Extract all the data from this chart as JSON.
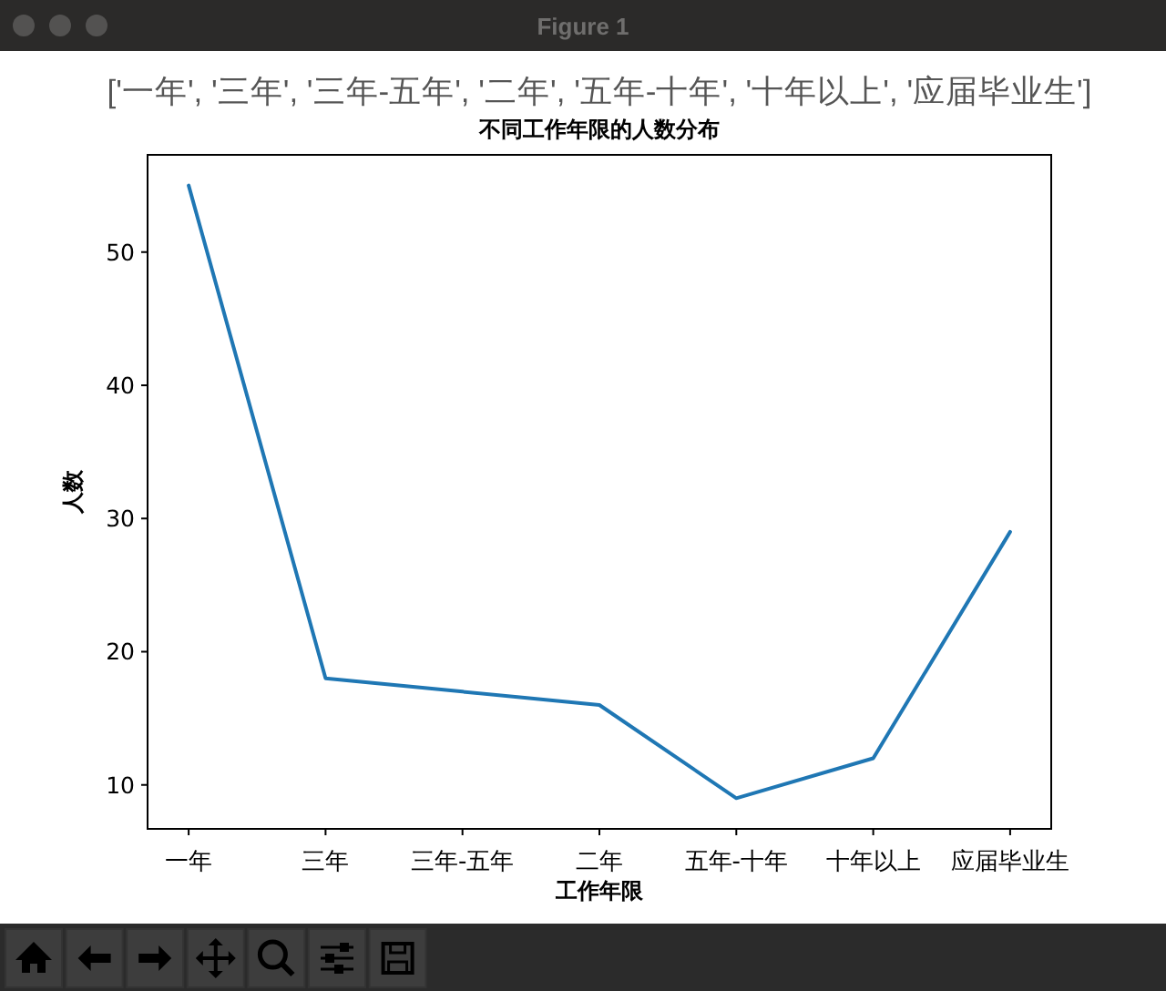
{
  "chart_data": {
    "type": "line",
    "title": "不同工作年限的人数分布",
    "xlabel": "工作年限",
    "ylabel": "人数",
    "categories": [
      "一年",
      "三年",
      "三年-五年",
      "二年",
      "五年-十年",
      "十年以上",
      "应届毕业生"
    ],
    "values": [
      55,
      18,
      17,
      16,
      9,
      12,
      29
    ],
    "color": "#1f77b4",
    "ylim": [
      6.7,
      57.3
    ],
    "yticks": [
      10,
      20,
      30,
      40,
      50
    ],
    "annotations": [
      "['一年', '三年', '三年-五年', '二年', '五年-十年', '十年以上', '应届毕业生']",
      "Figure 1"
    ]
  }
}
